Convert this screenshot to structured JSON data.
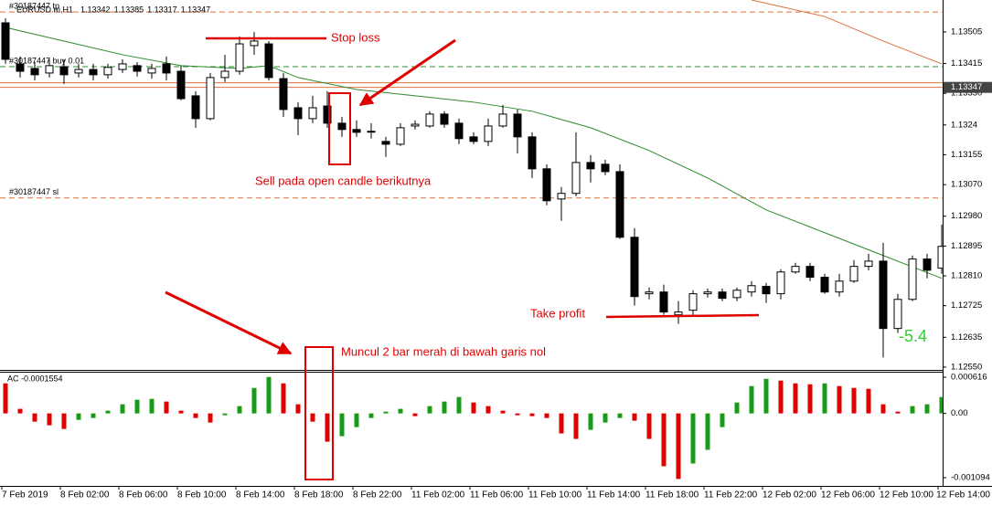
{
  "chart_data": [
    {
      "type": "candlestick",
      "symbol": "EURUSD.m,H1",
      "ohlc_header": [
        1.13342,
        1.13385,
        1.13317,
        1.13347
      ],
      "categories": [
        "7 Feb 2019",
        null,
        null,
        null,
        "8 Feb 02:00",
        null,
        null,
        null,
        "8 Feb 06:00",
        null,
        null,
        null,
        "8 Feb 10:00",
        null,
        null,
        null,
        "8 Feb 14:00",
        null,
        null,
        null,
        "8 Feb 18:00",
        null,
        null,
        null,
        "8 Feb 22:00",
        null,
        null,
        null,
        "11 Feb 02:00",
        null,
        null,
        null,
        "11 Feb 06:00",
        null,
        null,
        null,
        "11 Feb 10:00",
        null,
        null,
        null,
        "11 Feb 14:00",
        null,
        null,
        null,
        "11 Feb 18:00",
        null,
        null,
        null,
        "11 Feb 22:00",
        null,
        null,
        null,
        "12 Feb 02:00",
        null,
        null,
        null,
        "12 Feb 06:00",
        null,
        null,
        null,
        "12 Feb 10:00",
        null,
        null,
        null,
        "12 Feb 14:00"
      ],
      "open": [
        1.13531,
        1.13414,
        1.13401,
        1.13388,
        1.13406,
        1.13388,
        1.13398,
        1.13383,
        1.13398,
        1.13409,
        1.13388,
        1.13414,
        1.13393,
        1.13323,
        1.13258,
        1.13375,
        1.13393,
        1.13466,
        1.13471,
        1.13372,
        1.13289,
        1.13258,
        1.13294,
        1.13245,
        1.13227,
        1.13222,
        1.13193,
        1.13185,
        1.13237,
        1.13237,
        1.13271,
        1.13245,
        1.13206,
        1.13193,
        1.13237,
        1.13271,
        1.13206,
        1.13115,
        1.13029,
        1.13045,
        1.13133,
        1.13128,
        1.13107,
        1.1292,
        1.12759,
        1.12764,
        1.12699,
        1.12712,
        1.12759,
        1.12764,
        1.12748,
        1.12764,
        1.1278,
        1.12759,
        1.12821,
        1.12837,
        1.12806,
        1.12764,
        1.12795,
        1.12837,
        1.12852,
        1.1266,
        1.12743,
        1.12858,
        1.12832
      ],
      "high": [
        1.13544,
        1.13435,
        1.13419,
        1.13427,
        1.13427,
        1.13414,
        1.13414,
        1.13414,
        1.13427,
        1.13419,
        1.13414,
        1.13435,
        1.13409,
        1.13336,
        1.13388,
        1.1344,
        1.13492,
        1.13505,
        1.13479,
        1.13388,
        1.13305,
        1.13323,
        1.13336,
        1.13263,
        1.13253,
        1.13245,
        1.13206,
        1.13245,
        1.13253,
        1.13279,
        1.13279,
        1.13258,
        1.13219,
        1.13258,
        1.13297,
        1.13284,
        1.13219,
        1.13128,
        1.13063,
        1.13219,
        1.13154,
        1.13141,
        1.13128,
        1.12946,
        1.12777,
        1.12785,
        1.12738,
        1.12769,
        1.12774,
        1.12774,
        1.12777,
        1.12795,
        1.1279,
        1.12829,
        1.12847,
        1.12847,
        1.12816,
        1.12816,
        1.12855,
        1.12873,
        1.12904,
        1.12759,
        1.12868,
        1.12873,
        1.12956
      ],
      "low": [
        1.13414,
        1.13375,
        1.13367,
        1.13375,
        1.13357,
        1.13375,
        1.13367,
        1.13372,
        1.13388,
        1.13378,
        1.13372,
        1.13367,
        1.1331,
        1.13232,
        1.13253,
        1.13362,
        1.13383,
        1.1344,
        1.13367,
        1.13263,
        1.13211,
        1.13245,
        1.13232,
        1.13206,
        1.13206,
        1.13201,
        1.13149,
        1.1318,
        1.13227,
        1.13232,
        1.13232,
        1.13185,
        1.13185,
        1.1318,
        1.13232,
        1.13159,
        1.13089,
        1.13011,
        1.12967,
        1.13037,
        1.13076,
        1.13097,
        1.12915,
        1.12725,
        1.12743,
        1.12699,
        1.12673,
        1.12699,
        1.12748,
        1.12738,
        1.12738,
        1.12751,
        1.12733,
        1.12743,
        1.12816,
        1.12795,
        1.12759,
        1.12751,
        1.1279,
        1.12826,
        1.12577,
        1.12647,
        1.12738,
        1.12803,
        1.12816
      ],
      "close": [
        1.13427,
        1.13393,
        1.13383,
        1.13409,
        1.13383,
        1.13398,
        1.13383,
        1.13404,
        1.13414,
        1.13393,
        1.13401,
        1.13388,
        1.13315,
        1.13258,
        1.13375,
        1.13393,
        1.13471,
        1.13479,
        1.13375,
        1.13284,
        1.13258,
        1.13289,
        1.13245,
        1.13227,
        1.13219,
        1.13222,
        1.13185,
        1.13232,
        1.13242,
        1.13271,
        1.13242,
        1.13201,
        1.13193,
        1.13237,
        1.13271,
        1.13206,
        1.13115,
        1.13024,
        1.13045,
        1.13133,
        1.13115,
        1.13107,
        1.1292,
        1.12751,
        1.12764,
        1.12707,
        1.12707,
        1.12759,
        1.12764,
        1.12746,
        1.12769,
        1.12782,
        1.12759,
        1.12821,
        1.12837,
        1.12806,
        1.12764,
        1.12795,
        1.12837,
        1.12852,
        1.1266,
        1.12743,
        1.12858,
        1.12826,
        1.12894
      ],
      "up_color": "#ffffff",
      "down_color": "#000000",
      "ylim": [
        1.12542,
        1.13596
      ],
      "yticks": [
        1.13505,
        1.13415,
        {
          "value": 1.1333,
          "label": "1.13330"
        },
        1.1324,
        1.13155,
        {
          "value": 1.1307,
          "label": "1.13070"
        },
        {
          "value": 1.1298,
          "label": "1.12980"
        },
        1.12895,
        {
          "value": 1.1281,
          "label": "1.12810"
        },
        1.12725,
        1.12635,
        {
          "value": 1.1255,
          "label": "1.12550"
        }
      ],
      "lines": [
        {
          "color": "#2e8b2e",
          "x": [
            0,
            4,
            8,
            12,
            16,
            18,
            20,
            24,
            28,
            32,
            36,
            40,
            44,
            48,
            52,
            56,
            60,
            64
          ],
          "values": [
            1.13518,
            1.13479,
            1.1344,
            1.13409,
            1.13401,
            1.13409,
            1.13375,
            1.13341,
            1.13323,
            1.13305,
            1.13279,
            1.13232,
            1.13167,
            1.13089,
            1.12998,
            1.12933,
            1.12868,
            1.12803
          ]
        },
        {
          "color": "#e0703a",
          "x": [
            51,
            56,
            60,
            64
          ],
          "values": [
            1.13596,
            1.13549,
            1.13479,
            1.13414
          ]
        }
      ],
      "levels": [
        {
          "label": "#30187447 tp",
          "value": 1.13562,
          "color": "#e0703a"
        },
        {
          "label": "#30187447 buy 0.01",
          "value": 1.13406,
          "color": "#2e8b2e"
        },
        {
          "label": "#30187447 sl",
          "value": 1.13032,
          "color": "#e0703a"
        }
      ],
      "bid": 1.13347,
      "bid_color": "#e0703a",
      "profit": -5.4,
      "annotations": [
        "Stop loss",
        "Sell pada open candle berikutnya",
        "Take profit",
        "Muncul 2 bar merah di bawah garis nol"
      ]
    },
    {
      "type": "histogram",
      "title": "AC -0.0001554",
      "values": [
        0.000512,
        7.8e-05,
        -0.00014,
        -0.000202,
        -0.000264,
        -0.000109,
        -7.8e-05,
        4.7e-05,
        0.000155,
        0.000233,
        0.000248,
        0.000202,
        4.7e-05,
        -7.8e-05,
        -0.000155,
        -3.1e-05,
        0.000124,
        0.000434,
        0.00062,
        0.000512,
        0.000155,
        -0.00014,
        -0.000481,
        -0.000388,
        -0.000233,
        -7.8e-05,
        3.1e-05,
        7.8e-05,
        -4.7e-05,
        0.000124,
        0.000202,
        0.000279,
        0.000186,
        0.000124,
        4.7e-05,
        -3.1e-05,
        -4.7e-05,
        -7.8e-05,
        -0.000341,
        -0.000434,
        -0.000279,
        -0.000155,
        -7.8e-05,
        -0.000124,
        -0.000434,
        -0.000899,
        -0.001116,
        -0.000853,
        -0.00062,
        -0.000233,
        0.000186,
        0.000465,
        0.000589,
        0.000558,
        0.000512,
        0.000496,
        0.000512,
        0.000465,
        0.000434,
        0.000419,
        0.000155,
        3.1e-05,
        0.000124,
        0.000155,
        0.000279
      ],
      "up_color": "#1a9a1a",
      "down_color": "#e00000",
      "ylim": [
        -0.001234,
        0.000694
      ],
      "yticks": [
        0.000616,
        {
          "value": 0,
          "label": "0.00"
        },
        -0.001094
      ]
    }
  ]
}
